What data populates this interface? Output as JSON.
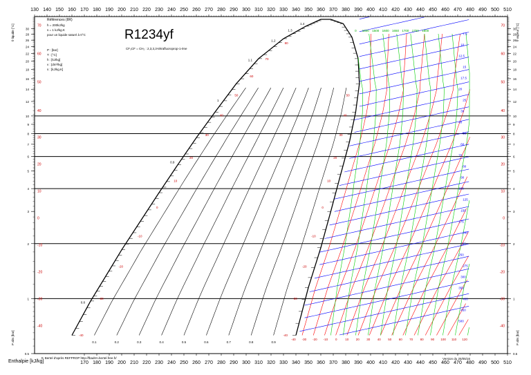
{
  "chart_data": {
    "type": "line",
    "title": "R1234yf",
    "subtitle": "CF₃CF = CH₂ : 2,3,3,3-tétrafluoroprop-1-ène",
    "xlabel": "Enthalpie [kJ/kg]",
    "ylabel_left": "P abs [bar]",
    "ylabel_right": "P abs [bar]",
    "ylabel_left_top": "θ liquide [°C]",
    "ylabel_right_top": "θ vapeur [°C]",
    "x_scale": "linear",
    "y_scale": "log",
    "xlim": [
      130,
      510
    ],
    "ylim": [
      0.5,
      35
    ],
    "x_ticks_top": [
      130,
      140,
      150,
      160,
      170,
      180,
      190,
      200,
      210,
      220,
      230,
      240,
      250,
      260,
      270,
      280,
      290,
      300,
      310,
      320,
      330,
      340,
      350,
      360,
      370,
      380,
      390,
      400,
      410,
      420,
      430,
      440,
      450,
      460,
      470,
      480,
      490,
      500,
      510
    ],
    "x_ticks_bottom": [
      170,
      180,
      190,
      200,
      210,
      220,
      230,
      240,
      250,
      260,
      270,
      280,
      290,
      300,
      310,
      320,
      330,
      340,
      350,
      360,
      370,
      380,
      390,
      400,
      410,
      420,
      430,
      440,
      450,
      460,
      470,
      480,
      490,
      500,
      510
    ],
    "y_ticks": [
      30,
      28,
      26,
      24,
      22,
      20,
      18,
      16,
      14,
      12,
      10,
      9,
      8,
      7,
      6,
      5,
      4,
      3,
      2,
      1,
      0.5
    ],
    "pressure_lines_bar": [
      10,
      8,
      6,
      4,
      2,
      1
    ],
    "temp_axis_left": [
      70,
      60,
      50,
      40,
      30,
      20,
      10,
      0,
      -10,
      -20,
      -30,
      -40
    ],
    "temp_axis_right": [
      70,
      60,
      50,
      40,
      30,
      20,
      10,
      0,
      -10,
      -20,
      -30,
      -40
    ],
    "references": {
      "title": "Références (IIR)",
      "line1": "h = 200kJ/kg",
      "line2": "s = 1 kJ/kg.K",
      "line3": "pour un liquide saturé à 0°C"
    },
    "units": [
      "P : [bar]",
      "T : [°C]",
      "h : [kJ/kg]",
      "v : [dm³/kg]",
      "s : [kJ/kg.K]"
    ],
    "quality_labels": [
      "0.1",
      "0.2",
      "0.3",
      "0.4",
      "0.5",
      "0.6",
      "0.7",
      "0.8",
      "0.9"
    ],
    "entropy_labels": [
      "0.8",
      "0.9",
      "1",
      "1.1",
      "1.2",
      "1.3",
      "1.4"
    ],
    "isotherm_bottom_labels": [
      "-40",
      "-30",
      "-20",
      "-10",
      "0",
      "10",
      "20",
      "30",
      "40",
      "50",
      "60",
      "70",
      "80",
      "90",
      "100",
      "110",
      "120"
    ],
    "isotherm_top_labels": [
      "0",
      "1600",
      "1500",
      "1600",
      "1650",
      "1700",
      "1750",
      "1800"
    ],
    "volume_labels": [
      "7.5",
      "10",
      "12.5",
      "15",
      "17.5",
      "20",
      "25",
      "30",
      "40",
      "50",
      "60",
      "70",
      "80",
      "90",
      "100",
      "125",
      "150",
      "175",
      "200",
      "225",
      "250",
      "275",
      "300",
      "350",
      "400",
      "450",
      "500"
    ],
    "footer_left": "F. Bertel d'après REFPROP http://fbadrm.bertel.free.fr/",
    "footer_right": "Version du 25/05/16",
    "saturation_dome": {
      "liquid": [
        [
          160,
          0.63
        ],
        [
          175,
          0.97
        ],
        [
          187,
          1.32
        ],
        [
          200,
          1.85
        ],
        [
          215,
          2.65
        ],
        [
          230,
          3.8
        ],
        [
          245,
          5.4
        ],
        [
          260,
          7.6
        ],
        [
          275,
          10.5
        ],
        [
          292,
          15
        ],
        [
          310,
          20.6
        ],
        [
          330,
          26.5
        ],
        [
          348,
          31
        ],
        [
          360,
          33.8
        ]
      ],
      "vapor": [
        [
          340,
          0.63
        ],
        [
          350,
          1.15
        ],
        [
          360,
          1.9
        ],
        [
          368,
          3
        ],
        [
          376,
          4.8
        ],
        [
          383,
          7.2
        ],
        [
          388,
          10.5
        ],
        [
          391,
          15
        ],
        [
          390,
          20.6
        ],
        [
          385,
          27
        ],
        [
          378,
          32
        ],
        [
          368,
          33.8
        ],
        [
          360,
          33.8
        ]
      ]
    },
    "colors": {
      "grid": "#000000",
      "temperature_left": "#cc0000",
      "isotherms": "#ff0000",
      "isochores": "#0000ff",
      "isentropes": "#00cc00",
      "entropy_text": "#000000"
    }
  }
}
